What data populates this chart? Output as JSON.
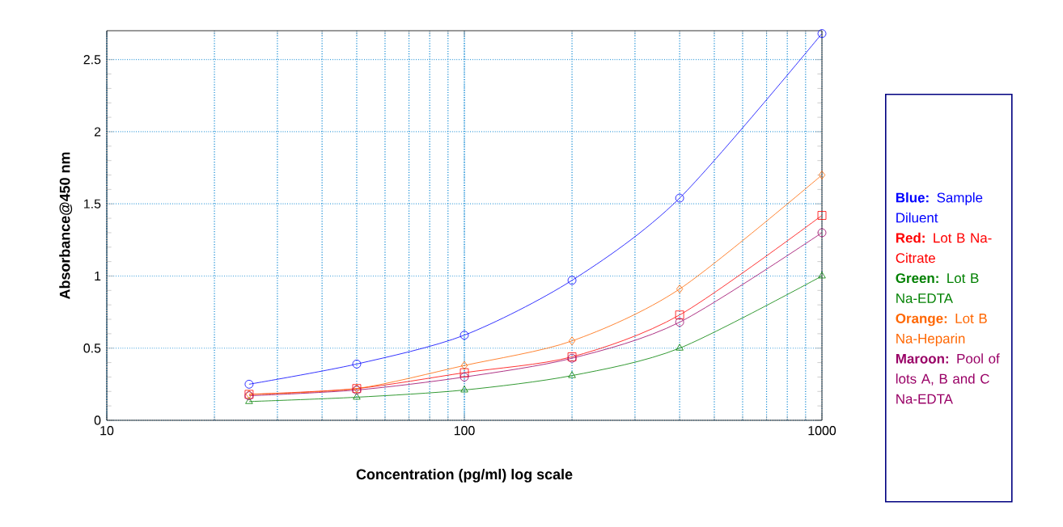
{
  "chart_data": {
    "type": "line",
    "xlabel": "Concentration (pg/ml) log scale",
    "ylabel": "Absorbance@450 nm",
    "log": "x",
    "grid": true,
    "legend": "right",
    "x": [
      25,
      50,
      100,
      200,
      400,
      1000
    ],
    "xlim": [
      10,
      1000
    ],
    "xticks": [
      10,
      100,
      1000
    ],
    "ylim": [
      0,
      2.7
    ],
    "yticks": [
      0,
      0.5,
      1,
      1.5,
      2,
      2.5
    ],
    "series": [
      {
        "name": "**Blue:** Sample Diluent",
        "color": "#0000ff",
        "marker": "circle",
        "values": [
          0.25,
          0.39,
          0.59,
          0.97,
          1.54,
          2.68
        ]
      },
      {
        "name": "**Red:** Lot B Na-Citrate",
        "color": "#ff0000",
        "marker": "square",
        "values": [
          0.18,
          0.22,
          0.33,
          0.44,
          0.73,
          1.42
        ]
      },
      {
        "name": "**Green:** Lot B Na-EDTA",
        "color": "#008000",
        "marker": "triangle",
        "values": [
          0.13,
          0.16,
          0.21,
          0.31,
          0.5,
          1.0
        ]
      },
      {
        "name": "**Orange:** Lot B Na-Heparin",
        "color": "#ff6600",
        "marker": "diamond",
        "values": [
          0.18,
          0.22,
          0.38,
          0.55,
          0.91,
          1.7
        ]
      },
      {
        "name": "**Maroon:** Pool of lots A, B and C Na-EDTA",
        "color": "#990066",
        "marker": "circle",
        "values": [
          0.17,
          0.21,
          0.3,
          0.43,
          0.68,
          1.3
        ]
      }
    ]
  }
}
